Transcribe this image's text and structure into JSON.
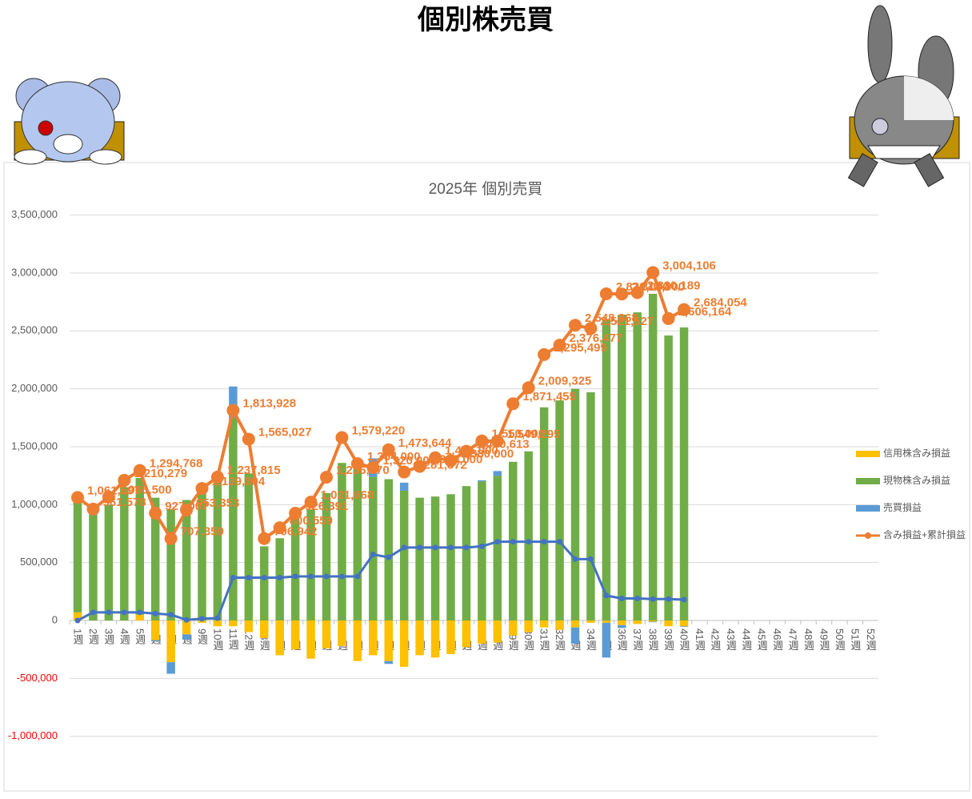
{
  "header": {
    "title": "個別株売買"
  },
  "chart_data": {
    "type": "combo",
    "title": "2025年 個別売買",
    "categories": [
      "1週",
      "2週",
      "3週",
      "4週",
      "5週",
      "6週",
      "7週",
      "8週",
      "9週",
      "10週",
      "11週",
      "12週",
      "13週",
      "14週",
      "15週",
      "16週",
      "17週",
      "18週",
      "19週",
      "20週",
      "21週",
      "22週",
      "23週",
      "24週",
      "25週",
      "26週",
      "27週",
      "28週",
      "29週",
      "30週",
      "31週",
      "32週",
      "33週",
      "34週",
      "35週",
      "36週",
      "37週",
      "38週",
      "39週",
      "40週",
      "41週",
      "42週",
      "43週",
      "44週",
      "45週",
      "46週",
      "47週",
      "48週",
      "49週",
      "50週",
      "51週",
      "52週"
    ],
    "ylim": [
      -1000000,
      3500000
    ],
    "yticks": [
      {
        "value": -1000000,
        "label": "-1,000,000"
      },
      {
        "value": -500000,
        "label": "-500,000"
      },
      0,
      {
        "value": 500000,
        "label": "500,000"
      },
      {
        "value": 1000000,
        "label": "1,000,000"
      },
      {
        "value": 1500000,
        "label": "1,500,000"
      },
      {
        "value": 2000000,
        "label": "2,000,000"
      },
      {
        "value": 2500000,
        "label": "2,500,000"
      },
      {
        "value": 3000000,
        "label": "3,000,000"
      },
      {
        "value": 3500000,
        "label": "3,500,000"
      }
    ],
    "grid": true,
    "negative_tick_color": "#ff0000",
    "legend": "right",
    "series": [
      {
        "name": "信用株含み損益",
        "type": "bar",
        "color": "#ffc000",
        "values": [
          70000,
          0,
          0,
          0,
          50000,
          -170000,
          -360000,
          -120000,
          -20000,
          -50000,
          -50000,
          -100000,
          -150000,
          -300000,
          -250000,
          -330000,
          -240000,
          -220000,
          -350000,
          -300000,
          -350000,
          -400000,
          -300000,
          -320000,
          -290000,
          -230000,
          -200000,
          -190000,
          -130000,
          -100000,
          -60000,
          -80000,
          -60000,
          -20000,
          -20000,
          -40000,
          -30000,
          -10000,
          -50000,
          -50000,
          null,
          null,
          null,
          null,
          null,
          null,
          null,
          null,
          null,
          null,
          null,
          null
        ]
      },
      {
        "name": "現物株含み損益",
        "type": "bar",
        "color": "#70ad47",
        "values": [
          950000,
          910000,
          1000000,
          1150000,
          1180000,
          1060000,
          960000,
          1040000,
          1110000,
          1250000,
          1750000,
          1270000,
          640000,
          710000,
          880000,
          960000,
          1100000,
          1360000,
          1310000,
          1240000,
          1220000,
          1120000,
          1060000,
          1070000,
          1090000,
          1160000,
          1200000,
          1250000,
          1370000,
          1460000,
          1840000,
          1900000,
          2000000,
          1970000,
          2600000,
          2640000,
          2660000,
          2820000,
          2460000,
          2530000,
          null,
          null,
          null,
          null,
          null,
          null,
          null,
          null,
          null,
          null,
          null,
          null
        ]
      },
      {
        "name": "売買損益",
        "type": "bar",
        "color": "#5b9bd5",
        "values": [
          0,
          70000,
          0,
          0,
          0,
          -10000,
          -100000,
          -45000,
          10000,
          5000,
          270000,
          0,
          0,
          0,
          10000,
          0,
          0,
          0,
          0,
          160000,
          -25000,
          70000,
          0,
          0,
          0,
          0,
          10000,
          40000,
          0,
          0,
          0,
          0,
          -140000,
          0,
          -300000,
          -25000,
          0,
          -5000,
          0,
          -5000,
          null,
          null,
          null,
          null,
          null,
          null,
          null,
          null,
          null,
          null,
          null,
          null
        ]
      },
      {
        "name": "含み損益+累計損益",
        "type": "line",
        "color": "#ed7d31",
        "values": [
          1061597,
          961578,
          1066500,
          1210279,
          1294768,
          927007,
          707359,
          953353,
          1139804,
          1237815,
          1813928,
          1565027,
          706942,
          800559,
          926391,
          1021668,
          1236770,
          1579220,
          1354000,
          1320000,
          1473644,
          1281872,
          1330000,
          1405000,
          1380000,
          1460613,
          1550000,
          1549295,
          1871455,
          2009325,
          2295499,
          2376477,
          2548868,
          2521527,
          2820000,
          2818000,
          2830189,
          3004106,
          2606164,
          2684054,
          null,
          null,
          null,
          null,
          null,
          null,
          null,
          null,
          null,
          null,
          null,
          null
        ],
        "value_labels": [
          "1,061,597",
          "961,578",
          "1,066,500",
          "1,210,279",
          "1,294,768",
          "927,007",
          "707,359",
          "953,353",
          "1,139,804",
          "1,237,815",
          "1,813,928",
          "1,565,027",
          "706,942",
          "800,559",
          "926,391",
          "1,021,668",
          "1,236,770",
          "1,579,220",
          "1,354,000",
          "1,320,000",
          "1,473,644",
          "1,281,872",
          "1,330,000",
          "1,405,000",
          "1,380,000",
          "1,460,613",
          "1,550,000",
          "1,549,295",
          "1,871,455",
          "2,009,325",
          "2,295,499",
          "2,376,477",
          "2,548,868",
          "2,521,527",
          "2,820,000",
          "2,818,000",
          "2,830,189",
          "3,004,106",
          "2,606,164",
          "2,684,054",
          null,
          null,
          null,
          null,
          null,
          null,
          null,
          null,
          null,
          null,
          null,
          null
        ]
      },
      {
        "type": "line",
        "color": "#4472c4",
        "values": [
          0,
          70000,
          70000,
          70000,
          70000,
          60000,
          50000,
          5000,
          15000,
          20000,
          370000,
          370000,
          370000,
          370000,
          380000,
          380000,
          380000,
          380000,
          380000,
          570000,
          545000,
          630000,
          630000,
          630000,
          630000,
          630000,
          640000,
          680000,
          680000,
          680000,
          680000,
          680000,
          530000,
          530000,
          215000,
          190000,
          190000,
          185000,
          185000,
          180000,
          null,
          null,
          null,
          null,
          null,
          null,
          null,
          null,
          null,
          null,
          null,
          null
        ]
      }
    ]
  }
}
